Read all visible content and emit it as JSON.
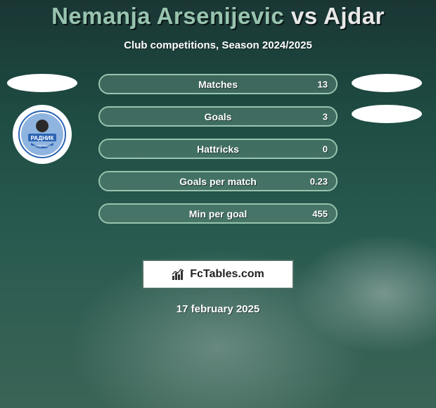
{
  "title": {
    "player1": "Nemanja Arsenijevic",
    "vs": "vs",
    "player2": "Ajdar",
    "player1_color": "#98c4af",
    "vs_color": "#e8e8e8",
    "player2_color": "#e8e8e8",
    "fontsize": 33
  },
  "subtitle": "Club competitions, Season 2024/2025",
  "bars": {
    "border_color_p1": "#98c4af",
    "fill_color_p1": "#98c4af",
    "fill_opacity": 0.25,
    "height": 29,
    "gap": 17,
    "items": [
      {
        "label": "Matches",
        "value_left": "13",
        "fill_pct": 100
      },
      {
        "label": "Goals",
        "value_left": "3",
        "fill_pct": 100
      },
      {
        "label": "Hattricks",
        "value_left": "0",
        "fill_pct": 100
      },
      {
        "label": "Goals per match",
        "value_left": "0.23",
        "fill_pct": 100
      },
      {
        "label": "Min per goal",
        "value_left": "455",
        "fill_pct": 100
      }
    ]
  },
  "side": {
    "ellipse_color": "#ffffff",
    "badge_bg": "#ffffff",
    "badge_primary": "#2a63b3",
    "badge_accent": "#8fb4df",
    "badge_text": "РАДНИК"
  },
  "brand": {
    "text": "FcTables.com",
    "bg": "#ffffff",
    "border": "#4c6e62",
    "icon_color": "#333333"
  },
  "date": "17 february 2025",
  "background": {
    "gradient_top": "#1a3634",
    "gradient_mid": "#2a5b50",
    "gradient_bottom": "#3a6456"
  }
}
